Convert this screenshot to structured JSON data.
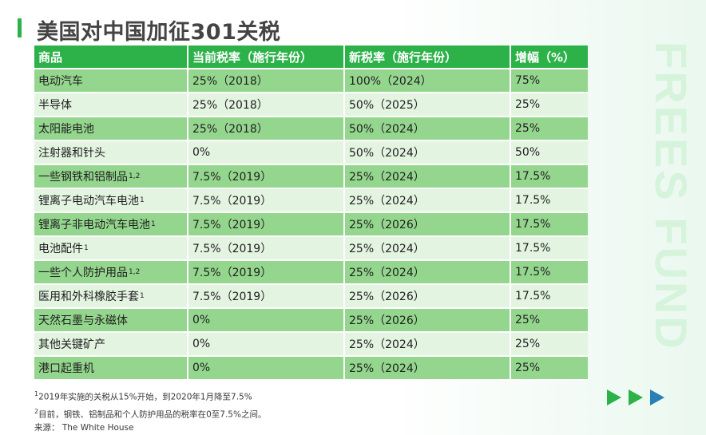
{
  "page": {
    "title": "美国对中国加征301关税",
    "watermark": "FREES FUND"
  },
  "table": {
    "headers": [
      "商品",
      "当前税率（施行年份）",
      "新税率（施行年份）",
      "增幅（%）"
    ],
    "rows": [
      {
        "item": "电动汽车",
        "note": "",
        "current": "25%（2018）",
        "new": "100%（2024）",
        "increase": "75%"
      },
      {
        "item": "半导体",
        "note": "",
        "current": "25%（2018）",
        "new": "50%（2025）",
        "increase": "25%"
      },
      {
        "item": "太阳能电池",
        "note": "",
        "current": "25%（2018）",
        "new": "50%（2024）",
        "increase": "25%"
      },
      {
        "item": "注射器和针头",
        "note": "",
        "current": "0%",
        "new": "50%（2024）",
        "increase": "50%"
      },
      {
        "item": "一些钢铁和铝制品",
        "note": "1,2",
        "current": "7.5%（2019）",
        "new": "25%（2024）",
        "increase": "17.5%"
      },
      {
        "item": "锂离子电动汽车电池",
        "note": "1",
        "current": "7.5%（2019）",
        "new": "25%（2024）",
        "increase": "17.5%"
      },
      {
        "item": "锂离子非电动汽车电池",
        "note": "1",
        "current": "7.5%（2019）",
        "new": "25%（2026）",
        "increase": "17.5%"
      },
      {
        "item": "电池配件",
        "note": "1",
        "current": "7.5%（2019）",
        "new": "25%（2024）",
        "increase": "17.5%"
      },
      {
        "item": "一些个人防护用品",
        "note": "1,2",
        "current": "7.5%（2019）",
        "new": "25%（2024）",
        "increase": "17.5%"
      },
      {
        "item": "医用和外科橡胶手套",
        "note": "1",
        "current": "7.5%（2019）",
        "new": "25%（2026）",
        "increase": "17.5%"
      },
      {
        "item": "天然石墨与永磁体",
        "note": "",
        "current": "0%",
        "new": "25%（2026）",
        "increase": "25%"
      },
      {
        "item": "其他关键矿产",
        "note": "",
        "current": "0%",
        "new": "25%（2024）",
        "increase": "25%"
      },
      {
        "item": "港口起重机",
        "note": "",
        "current": "0%",
        "new": "25%（2024）",
        "increase": "25%"
      }
    ]
  },
  "footnotes": {
    "note1_mark": "1",
    "note1": "2019年实施的关税从15%开始，到2020年1月降至7.5%",
    "note2_mark": "2",
    "note2": "目前，钢铁、铝制品和个人防护用品的税率在0至7.5%之间。",
    "source": "来源：  The White House"
  },
  "colors": {
    "header_green": "#2db24a",
    "row_dark": "#95d68f",
    "row_light": "#e3f4e1",
    "arrow_green": "#2db24a",
    "arrow_blue": "#2a7fb4"
  },
  "decor": {
    "arrows": [
      "play-arrow-icon",
      "play-arrow-icon",
      "play-arrow-icon"
    ]
  }
}
